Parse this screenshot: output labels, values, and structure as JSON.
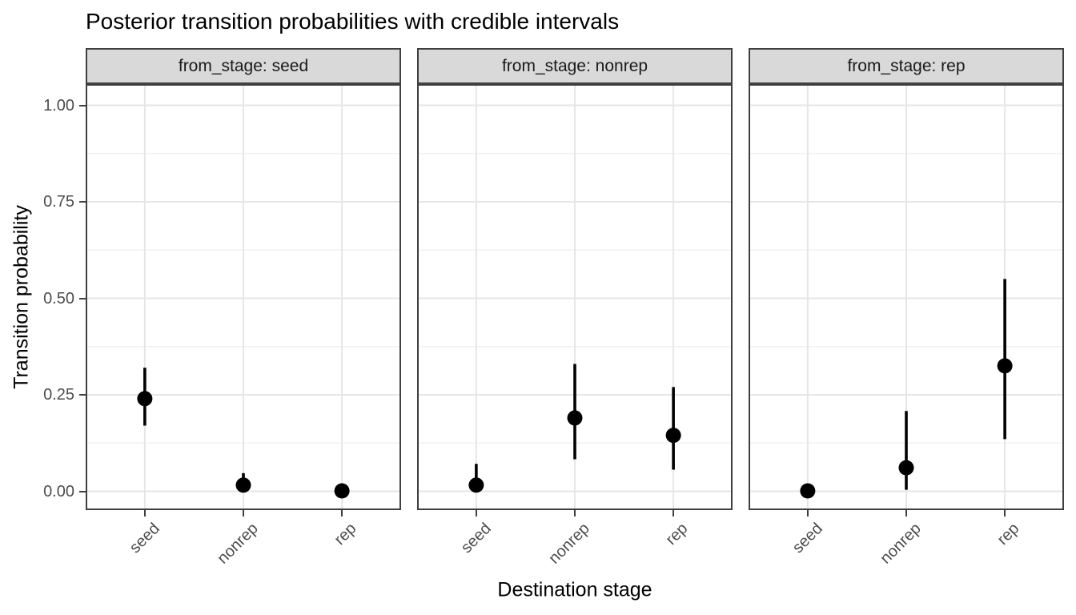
{
  "title": "Posterior transition probabilities with credible intervals",
  "chart_data": {
    "type": "scatter",
    "subtype": "faceted-pointrange",
    "title": "Posterior transition probabilities with credible intervals",
    "xlabel": "Destination stage",
    "ylabel": "Transition probability",
    "facet_variable": "from_stage",
    "categories": [
      "seed",
      "nonrep",
      "rep"
    ],
    "ylim": [
      0,
      1
    ],
    "y_ticks": [
      0.0,
      0.25,
      0.5,
      0.75,
      1.0
    ],
    "y_tick_labels": [
      "0.00",
      "0.25",
      "0.50",
      "0.75",
      "1.00"
    ],
    "y_minor_ticks": [
      0.125,
      0.375,
      0.625,
      0.875
    ],
    "grid": "major and minor horizontal, major vertical at categories",
    "legend_position": "none",
    "facets": [
      {
        "label": "from_stage: seed",
        "points": [
          {
            "x": "seed",
            "est": 0.24,
            "lo": 0.17,
            "hi": 0.32
          },
          {
            "x": "nonrep",
            "est": 0.016,
            "lo": 0.0,
            "hi": 0.047
          },
          {
            "x": "rep",
            "est": 0.001,
            "lo": 0.0,
            "hi": 0.006
          }
        ]
      },
      {
        "label": "from_stage: nonrep",
        "points": [
          {
            "x": "seed",
            "est": 0.016,
            "lo": 0.001,
            "hi": 0.071
          },
          {
            "x": "nonrep",
            "est": 0.19,
            "lo": 0.083,
            "hi": 0.33
          },
          {
            "x": "rep",
            "est": 0.145,
            "lo": 0.056,
            "hi": 0.27
          }
        ]
      },
      {
        "label": "from_stage: rep",
        "points": [
          {
            "x": "seed",
            "est": 0.001,
            "lo": 0.0,
            "hi": 0.004
          },
          {
            "x": "nonrep",
            "est": 0.061,
            "lo": 0.004,
            "hi": 0.208
          },
          {
            "x": "rep",
            "est": 0.325,
            "lo": 0.135,
            "hi": 0.55
          }
        ]
      }
    ],
    "colors": {
      "point": "#000000",
      "error_bar": "#000000",
      "grid_major": "#e6e6e6",
      "grid_minor": "#f1f1f1",
      "strip_bg": "#d9d9d9",
      "panel_border": "#3f3f3f",
      "tick_label": "#4d4d4d",
      "tick_mark": "#404040",
      "title_text": "#000000"
    }
  }
}
